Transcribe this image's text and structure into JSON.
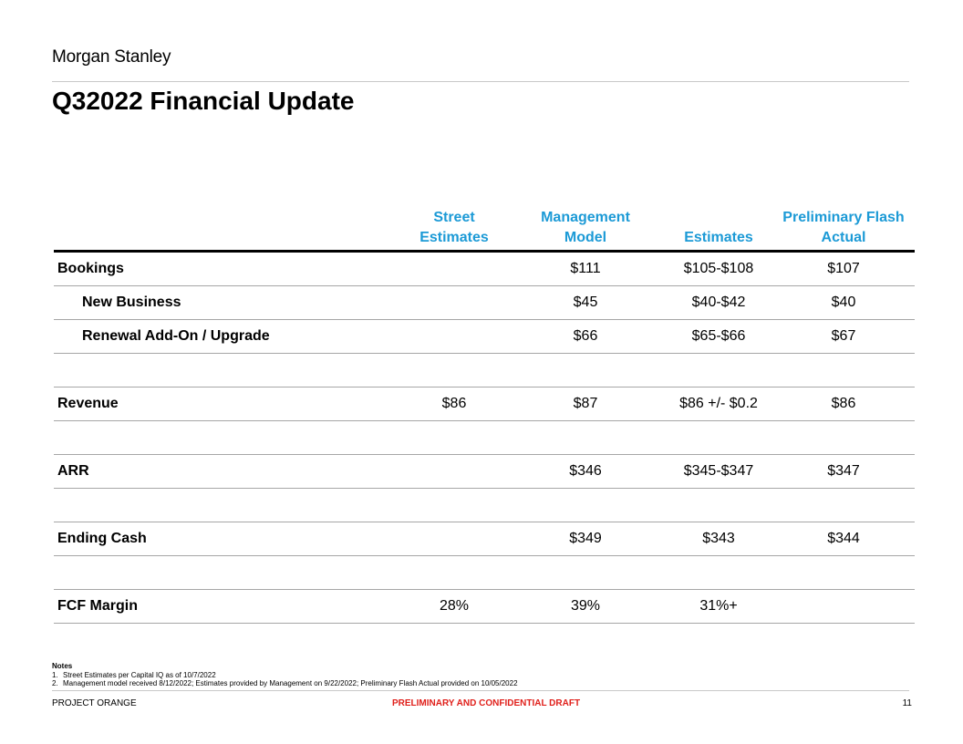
{
  "brand": {
    "logo_text": "Morgan Stanley"
  },
  "title": "Q32022 Financial Update",
  "table": {
    "header_color": "#1c9ad6",
    "columns": [
      {
        "line1": "",
        "line2": ""
      },
      {
        "line1": "Street",
        "line2": "Estimates"
      },
      {
        "line1": "Management",
        "line2": "Model"
      },
      {
        "line1": "",
        "line2": "Estimates"
      },
      {
        "line1": "Preliminary Flash",
        "line2": "Actual"
      }
    ],
    "rows": [
      {
        "label": "Bookings",
        "street": "",
        "model": "$111",
        "estimates": "$105-$108",
        "actual": "$107"
      },
      {
        "label": "New Business",
        "street": "",
        "model": "$45",
        "estimates": "$40-$42",
        "actual": "$40"
      },
      {
        "label": "Renewal Add-On / Upgrade",
        "street": "",
        "model": "$66",
        "estimates": "$65-$66",
        "actual": "$67"
      },
      {
        "label": "",
        "street": "",
        "model": "",
        "estimates": "",
        "actual": ""
      },
      {
        "label": "Revenue",
        "street": "$86",
        "model": "$87",
        "estimates": "$86 +/- $0.2",
        "actual": "$86"
      },
      {
        "label": "",
        "street": "",
        "model": "",
        "estimates": "",
        "actual": ""
      },
      {
        "label": "ARR",
        "street": "",
        "model": "$346",
        "estimates": "$345-$347",
        "actual": "$347"
      },
      {
        "label": "",
        "street": "",
        "model": "",
        "estimates": "",
        "actual": ""
      },
      {
        "label": "Ending Cash",
        "street": "",
        "model": "$349",
        "estimates": "$343",
        "actual": "$344"
      },
      {
        "label": "",
        "street": "",
        "model": "",
        "estimates": "",
        "actual": ""
      },
      {
        "label": "FCF Margin",
        "street": "28%",
        "model": "39%",
        "estimates": "31%+",
        "actual": ""
      }
    ]
  },
  "notes": {
    "heading": "Notes",
    "items": [
      {
        "num": "1.",
        "text": "Street Estimates per Capital IQ as of 10/7/2022"
      },
      {
        "num": "2.",
        "text": "Management model received 8/12/2022; Estimates provided by Management on 9/22/2022; Preliminary Flash Actual provided on 10/05/2022"
      }
    ]
  },
  "footer": {
    "left": "PROJECT ORANGE",
    "center": "PRELIMINARY AND CONFIDENTIAL DRAFT",
    "center_color": "#e0201b",
    "page": "11"
  }
}
